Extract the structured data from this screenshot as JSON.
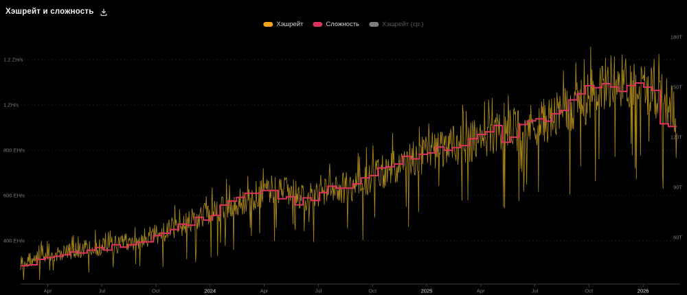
{
  "header": {
    "title": "Хэшрейт и сложность",
    "download_icon": "download-icon"
  },
  "legend": {
    "items": [
      {
        "id": "hashrate",
        "label": "Хэшрейт",
        "color": "#f5a31a",
        "enabled": true
      },
      {
        "id": "difficulty",
        "label": "Сложность",
        "color": "#dd3360",
        "enabled": true
      },
      {
        "id": "hashrate-ma",
        "label": "Хэшрейт (ср.)",
        "color": "#7d7d7d",
        "enabled": false
      }
    ]
  },
  "chart_data": {
    "type": "line",
    "title": "Хэшрейт и сложность",
    "background": "#000000",
    "grid": "faint-dashed-horizontal",
    "legend_position": "top-center",
    "x_axis": {
      "start": 2023.125,
      "end": 2026.155,
      "ticks": [
        {
          "label": "Apr",
          "t": 2023.25,
          "year": false
        },
        {
          "label": "Jul",
          "t": 2023.5,
          "year": false
        },
        {
          "label": "Oct",
          "t": 2023.75,
          "year": false
        },
        {
          "label": "2024",
          "t": 2024.0,
          "year": true
        },
        {
          "label": "Apr",
          "t": 2024.25,
          "year": false
        },
        {
          "label": "Jul",
          "t": 2024.5,
          "year": false
        },
        {
          "label": "Oct",
          "t": 2024.75,
          "year": false
        },
        {
          "label": "2025",
          "t": 2025.0,
          "year": true
        },
        {
          "label": "Apr",
          "t": 2025.25,
          "year": false
        },
        {
          "label": "Jul",
          "t": 2025.5,
          "year": false
        },
        {
          "label": "Oct",
          "t": 2025.75,
          "year": false
        },
        {
          "label": "2026",
          "t": 2026.0,
          "year": true
        }
      ]
    },
    "left_axis": {
      "name": "hashrate",
      "unit": "EH/s",
      "ticks": [
        {
          "label": "1.2 ZH/s",
          "value": 1200
        },
        {
          "label": "1 ZH/s",
          "value": 1000
        },
        {
          "label": "800 EH/s",
          "value": 800
        },
        {
          "label": "600 EH/s",
          "value": 600
        },
        {
          "label": "400 EH/s",
          "value": 400
        }
      ]
    },
    "right_axis": {
      "name": "difficulty",
      "unit": "T",
      "ticks": [
        {
          "label": "180T",
          "value": 180
        },
        {
          "label": "150T",
          "value": 150
        },
        {
          "label": "120T",
          "value": 120
        },
        {
          "label": "90T",
          "value": 90
        },
        {
          "label": "60T",
          "value": 60
        }
      ]
    },
    "series": [
      {
        "name": "Хэшрейт",
        "axis": "left",
        "style": "noisy-daily-line",
        "color": "#b3901c",
        "daily_variation_pct": 11,
        "monthly_anchors": [
          [
            2023.12,
            300
          ],
          [
            2023.21,
            326
          ],
          [
            2023.29,
            341
          ],
          [
            2023.37,
            356
          ],
          [
            2023.46,
            370
          ],
          [
            2023.54,
            378
          ],
          [
            2023.62,
            396
          ],
          [
            2023.71,
            416
          ],
          [
            2023.79,
            441
          ],
          [
            2023.87,
            472
          ],
          [
            2023.96,
            506
          ],
          [
            2024.04,
            540
          ],
          [
            2024.12,
            566
          ],
          [
            2024.21,
            598
          ],
          [
            2024.29,
            628
          ],
          [
            2024.37,
            612
          ],
          [
            2024.46,
            592
          ],
          [
            2024.54,
            614
          ],
          [
            2024.62,
            638
          ],
          [
            2024.71,
            662
          ],
          [
            2024.79,
            700
          ],
          [
            2024.87,
            732
          ],
          [
            2024.96,
            768
          ],
          [
            2025.04,
            800
          ],
          [
            2025.12,
            818
          ],
          [
            2025.21,
            838
          ],
          [
            2025.29,
            868
          ],
          [
            2025.37,
            882
          ],
          [
            2025.46,
            902
          ],
          [
            2025.54,
            928
          ],
          [
            2025.62,
            958
          ],
          [
            2025.71,
            1002
          ],
          [
            2025.79,
            1075
          ],
          [
            2025.87,
            1118
          ],
          [
            2025.96,
            1092
          ],
          [
            2026.04,
            1066
          ],
          [
            2026.12,
            1008
          ],
          [
            2026.15,
            958
          ]
        ]
      },
      {
        "name": "Сложность",
        "axis": "right",
        "style": "step",
        "color": "#dd3360",
        "step_start": 2023.125,
        "step_years": 0.03836,
        "values": [
          43.05,
          43.55,
          46.84,
          47.89,
          48.71,
          49.55,
          51.23,
          50.65,
          52.35,
          53.91,
          52.39,
          55.62,
          54.15,
          55.6,
          57.12,
          57.32,
          61.03,
          62.46,
          64.68,
          67.96,
          67.31,
          72.01,
          70.34,
          73.2,
          79.35,
          81.73,
          83.95,
          86.39,
          86.39,
          88.1,
          88.1,
          83.15,
          84.38,
          79.5,
          83.68,
          82.05,
          86.87,
          90.67,
          89.47,
          89.47,
          92.05,
          95.67,
          97.0,
          101.65,
          102.29,
          103.92,
          108.52,
          107.0,
          109.78,
          110.57,
          114.17,
          112.15,
          113.76,
          115.0,
          119.12,
          121.66,
          123.23,
          126.98,
          116.96,
          120.0,
          127.62,
          129.72,
          131.0,
          129.6,
          134.04,
          136.04,
          142.34,
          146.0,
          150.84,
          149.66,
          152.04,
          150.1,
          147.45,
          150.9,
          152.46,
          150.0,
          148.06,
          128.0,
          126.4
        ]
      },
      {
        "name": "Хэшрейт (ср.)",
        "axis": "left",
        "style": "line",
        "color": "#7d7d7d",
        "visible": false
      }
    ]
  }
}
